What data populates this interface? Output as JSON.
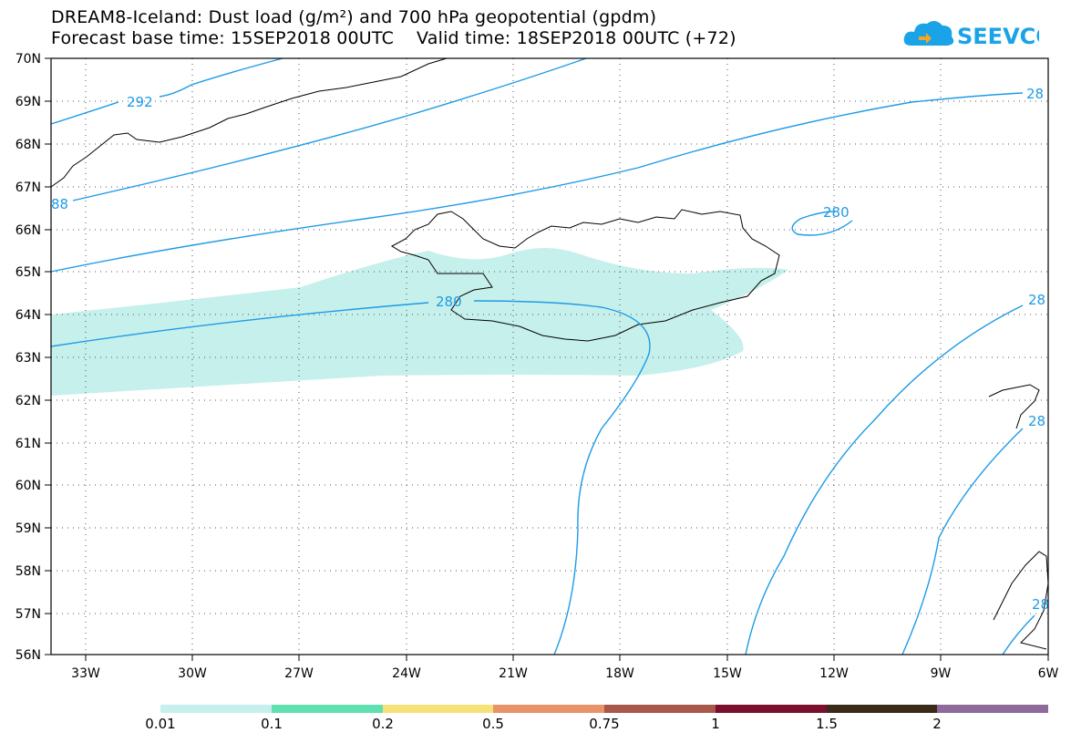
{
  "header": {
    "title_line1": "DREAM8-Iceland: Dust load (g/m²) and 700 hPa geopotential (gpdm)",
    "title_line2": "Forecast base time: 15SEP2018 00UTC    Valid time: 18SEP2018 00UTC (+72)"
  },
  "logo": {
    "text": "SEEVCCC",
    "icon": "cloud-icon",
    "color": "#1aa3e6"
  },
  "map": {
    "lat_labels": [
      "70N",
      "69N",
      "68N",
      "67N",
      "66N",
      "65N",
      "64N",
      "63N",
      "62N",
      "61N",
      "60N",
      "59N",
      "58N",
      "57N",
      "56N"
    ],
    "lon_labels": [
      "33W",
      "30W",
      "27W",
      "24W",
      "21W",
      "18W",
      "15W",
      "12W",
      "9W",
      "6W"
    ],
    "contour_labels": [
      "292",
      "88",
      "280",
      "280",
      "28",
      "28",
      "28",
      "28"
    ],
    "dust_color": "#c6f0eb",
    "contour_color": "#1e9be6"
  },
  "legend": {
    "colors": [
      "#c6f0eb",
      "#5ee0b0",
      "#f7e27a",
      "#e8926a",
      "#a8584a",
      "#7a0f2e",
      "#3b2a1a",
      "#8e6a9a"
    ],
    "ticks": [
      "0.01",
      "0.1",
      "0.2",
      "0.5",
      "0.75",
      "1",
      "1.5",
      "2"
    ]
  }
}
